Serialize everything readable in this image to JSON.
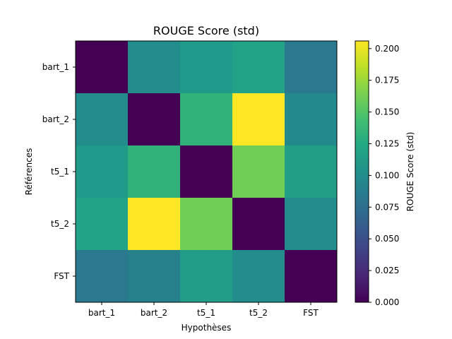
{
  "chart_data": {
    "type": "heatmap",
    "title": "ROUGE Score (std)",
    "xlabel": "Hypothèses",
    "ylabel": "Références",
    "x_categories": [
      "bart_1",
      "bart_2",
      "t5_1",
      "t5_2",
      "FST"
    ],
    "y_categories": [
      "bart_1",
      "bart_2",
      "t5_1",
      "t5_2",
      "FST"
    ],
    "values": [
      [
        0.0,
        0.099,
        0.112,
        0.118,
        0.083
      ],
      [
        0.099,
        0.0,
        0.133,
        0.206,
        0.096
      ],
      [
        0.112,
        0.133,
        0.0,
        0.161,
        0.115
      ],
      [
        0.118,
        0.206,
        0.161,
        0.0,
        0.1
      ],
      [
        0.083,
        0.09,
        0.114,
        0.1,
        0.0
      ]
    ],
    "colormap": "viridis",
    "colorbar": {
      "label": "ROUGE Score (std)",
      "range": [
        0.0,
        0.206
      ],
      "ticks": [
        "0.000",
        "0.025",
        "0.050",
        "0.075",
        "0.100",
        "0.125",
        "0.150",
        "0.175",
        "0.200"
      ]
    }
  }
}
